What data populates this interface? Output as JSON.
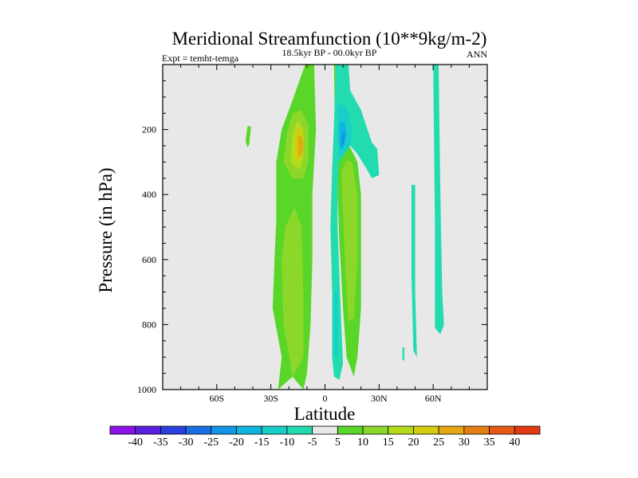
{
  "chart_data": {
    "type": "heatmap",
    "title": "Meridional Streamfunction (10**9kg/m-2)",
    "subtitle": "18.5kyr BP - 00.0kyr BP",
    "left_label": "Expt = temht-temga",
    "right_label": "ANN",
    "xlabel": "Latitude",
    "ylabel": "Pressure (in hPa)",
    "xlim": [
      -90,
      90
    ],
    "ylim": [
      0,
      1000
    ],
    "x_ticks": [
      {
        "value": -60,
        "label": "60S"
      },
      {
        "value": -30,
        "label": "30S"
      },
      {
        "value": 0,
        "label": "0"
      },
      {
        "value": 30,
        "label": "30N"
      },
      {
        "value": 60,
        "label": "60N"
      }
    ],
    "y_ticks": [
      {
        "value": 200,
        "label": "200"
      },
      {
        "value": 400,
        "label": "400"
      },
      {
        "value": 600,
        "label": "600"
      },
      {
        "value": 800,
        "label": "800"
      },
      {
        "value": 1000,
        "label": "1000"
      }
    ],
    "colorbar": {
      "labels": [
        "-40",
        "-35",
        "-30",
        "-25",
        "-20",
        "-15",
        "-10",
        "-5",
        "5",
        "10",
        "15",
        "20",
        "25",
        "30",
        "35",
        "40"
      ],
      "colors": [
        "#8a12e6",
        "#5a1ee0",
        "#2a3fe0",
        "#1a6ee6",
        "#1496e6",
        "#10b4e0",
        "#18cfc8",
        "#22dcb0",
        "#e8e8e8",
        "#5ad628",
        "#8cd82a",
        "#b4dc1a",
        "#d4cc10",
        "#e6a812",
        "#e67e14",
        "#e65a14",
        "#e03a12"
      ]
    },
    "regions": [
      {
        "level": "5",
        "points": [
          [
            -26,
            1000
          ],
          [
            -24,
            900
          ],
          [
            -29,
            750
          ],
          [
            -28,
            600
          ],
          [
            -27,
            480
          ],
          [
            -27,
            300
          ],
          [
            -24,
            200
          ],
          [
            -18,
            110
          ],
          [
            -11,
            0
          ],
          [
            -6,
            0
          ],
          [
            -5,
            200
          ],
          [
            -7,
            400
          ],
          [
            -7,
            600
          ],
          [
            -8,
            800
          ],
          [
            -10,
            950
          ],
          [
            -12,
            1000
          ],
          [
            -18,
            960
          ]
        ]
      },
      {
        "level": "10",
        "points": [
          [
            -18,
            960
          ],
          [
            -23,
            800
          ],
          [
            -24,
            600
          ],
          [
            -22,
            500
          ],
          [
            -17,
            440
          ],
          [
            -13,
            500
          ],
          [
            -12,
            700
          ],
          [
            -12,
            900
          ]
        ]
      },
      {
        "level": "10",
        "points": [
          [
            -23,
            300
          ],
          [
            -21,
            210
          ],
          [
            -18,
            150
          ],
          [
            -13,
            140
          ],
          [
            -9,
            190
          ],
          [
            -9,
            290
          ],
          [
            -12,
            350
          ],
          [
            -18,
            350
          ]
        ]
      },
      {
        "level": "15",
        "points": [
          [
            -19,
            300
          ],
          [
            -18,
            210
          ],
          [
            -15,
            170
          ],
          [
            -12,
            200
          ],
          [
            -12,
            290
          ],
          [
            -14,
            325
          ]
        ]
      },
      {
        "level": "20",
        "points": [
          [
            -17,
            290
          ],
          [
            -16,
            210
          ],
          [
            -14,
            190
          ],
          [
            -12,
            230
          ],
          [
            -13,
            290
          ]
        ]
      },
      {
        "level": "25",
        "points": [
          [
            -15,
            280
          ],
          [
            -15,
            220
          ],
          [
            -13,
            220
          ],
          [
            -12,
            250
          ],
          [
            -13,
            280
          ]
        ]
      },
      {
        "level": "5",
        "points": [
          [
            -43,
            190
          ],
          [
            -41,
            190
          ],
          [
            -42,
            245
          ],
          [
            -43,
            255
          ],
          [
            -44,
            235
          ]
        ]
      },
      {
        "level": "5",
        "points": [
          [
            7,
            290
          ],
          [
            11,
            250
          ],
          [
            14,
            255
          ],
          [
            18,
            300
          ],
          [
            20,
            400
          ],
          [
            20,
            550
          ],
          [
            20,
            750
          ],
          [
            18,
            900
          ],
          [
            16,
            960
          ],
          [
            12,
            900
          ],
          [
            10,
            750
          ],
          [
            8,
            550
          ],
          [
            7,
            400
          ]
        ]
      },
      {
        "level": "10",
        "points": [
          [
            9,
            330
          ],
          [
            12,
            295
          ],
          [
            15,
            300
          ],
          [
            18,
            400
          ],
          [
            18,
            600
          ],
          [
            16,
            780
          ],
          [
            13,
            790
          ],
          [
            11,
            600
          ],
          [
            10,
            450
          ]
        ]
      },
      {
        "level": "5",
        "points": [
          [
            5,
            0
          ],
          [
            8,
            0
          ],
          [
            8,
            200
          ],
          [
            7,
            260
          ],
          [
            6,
            400
          ]
        ]
      },
      {
        "level": "-5",
        "points": [
          [
            6,
            0
          ],
          [
            13,
            0
          ],
          [
            14,
            80
          ],
          [
            20,
            140
          ],
          [
            26,
            240
          ],
          [
            29,
            260
          ],
          [
            30,
            340
          ],
          [
            26,
            350
          ],
          [
            23,
            320
          ],
          [
            18,
            275
          ],
          [
            14,
            250
          ],
          [
            11,
            255
          ],
          [
            8,
            270
          ],
          [
            7,
            370
          ],
          [
            7,
            500
          ],
          [
            8,
            650
          ],
          [
            9,
            800
          ],
          [
            10,
            920
          ],
          [
            8,
            970
          ],
          [
            5,
            960
          ],
          [
            4,
            900
          ],
          [
            4,
            700
          ],
          [
            3,
            500
          ],
          [
            4,
            320
          ],
          [
            5,
            180
          ]
        ]
      },
      {
        "level": "-10",
        "points": [
          [
            7,
            120
          ],
          [
            12,
            130
          ],
          [
            15,
            200
          ],
          [
            14,
            250
          ],
          [
            10,
            280
          ],
          [
            8,
            300
          ],
          [
            7,
            240
          ]
        ]
      },
      {
        "level": "-15",
        "points": [
          [
            8,
            180
          ],
          [
            11,
            175
          ],
          [
            12,
            220
          ],
          [
            10,
            260
          ],
          [
            8,
            250
          ]
        ]
      },
      {
        "level": "-20",
        "points": [
          [
            9,
            220
          ],
          [
            11,
            200
          ],
          [
            11,
            230
          ],
          [
            9,
            260
          ]
        ]
      },
      {
        "level": "-10",
        "points": [
          [
            5,
            700
          ],
          [
            7,
            700
          ],
          [
            7,
            900
          ],
          [
            5,
            900
          ]
        ]
      },
      {
        "level": "-5",
        "points": [
          [
            60,
            0
          ],
          [
            63,
            0
          ],
          [
            64,
            400
          ],
          [
            65,
            700
          ],
          [
            66,
            800
          ],
          [
            64,
            830
          ],
          [
            61,
            810
          ],
          [
            61,
            500
          ]
        ]
      },
      {
        "level": "-5",
        "points": [
          [
            48,
            370
          ],
          [
            50,
            370
          ],
          [
            50,
            700
          ],
          [
            51,
            900
          ],
          [
            49,
            880
          ],
          [
            48,
            650
          ]
        ]
      },
      {
        "level": "-5",
        "points": [
          [
            43,
            870
          ],
          [
            44,
            870
          ],
          [
            44,
            910
          ],
          [
            43,
            910
          ]
        ]
      }
    ]
  }
}
